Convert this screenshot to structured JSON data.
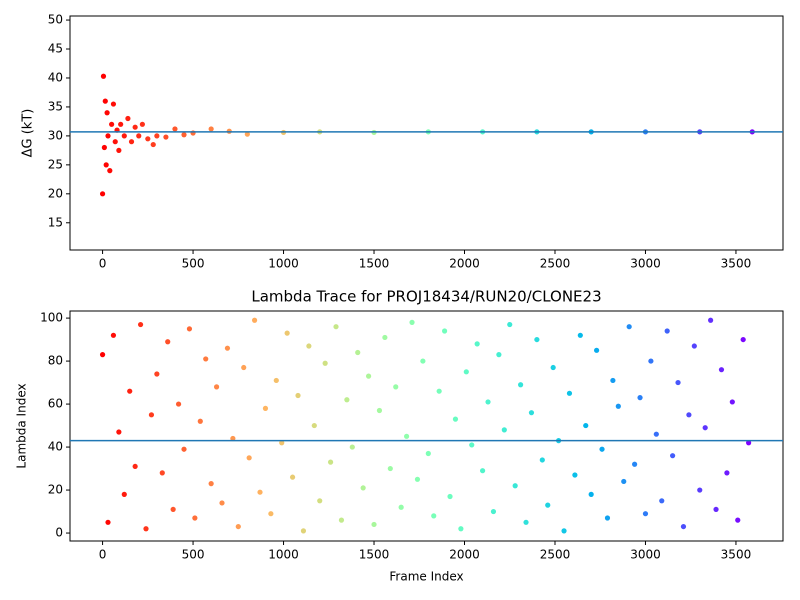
{
  "chart_data": [
    {
      "type": "scatter",
      "y_label": "ΔG (kT)",
      "colormap": "rainbow_r",
      "x": [
        0,
        5,
        10,
        15,
        20,
        25,
        30,
        40,
        50,
        60,
        70,
        80,
        90,
        100,
        120,
        140,
        160,
        180,
        200,
        220,
        250,
        280,
        300,
        350,
        400,
        450,
        500,
        600,
        700,
        800,
        1000,
        1200,
        1500,
        1800,
        2100,
        2400,
        2700,
        3000,
        3300,
        3590
      ],
      "y": [
        20,
        40.3,
        28,
        36,
        25,
        34,
        30,
        24,
        32,
        35.5,
        29,
        31,
        27.5,
        32,
        30,
        33,
        29,
        31.5,
        30,
        32,
        29.5,
        28.5,
        30,
        29.8,
        31.2,
        30.2,
        30.5,
        31.2,
        30.8,
        30.3,
        30.6,
        30.7,
        30.6,
        30.7,
        30.7,
        30.7,
        30.7,
        30.7,
        30.7,
        30.7
      ],
      "hline": 30.7,
      "hline_color": "#1f77b4",
      "xlim": [
        -180,
        3760
      ],
      "ylim": [
        10.3,
        50.7
      ],
      "xticks": [
        0,
        500,
        1000,
        1500,
        2000,
        2500,
        3000,
        3500
      ],
      "yticks": [
        15,
        20,
        25,
        30,
        35,
        40,
        45,
        50
      ]
    },
    {
      "type": "scatter",
      "title": "Lambda Trace for PROJ18434/RUN20/CLONE23",
      "x_label": "Frame Index",
      "y_label": "Lambda Index",
      "colormap": "rainbow_r",
      "x": [
        0,
        30,
        60,
        90,
        120,
        150,
        180,
        210,
        240,
        270,
        300,
        330,
        360,
        390,
        420,
        450,
        480,
        510,
        540,
        570,
        600,
        630,
        660,
        690,
        720,
        750,
        780,
        810,
        840,
        870,
        900,
        930,
        960,
        990,
        1020,
        1050,
        1080,
        1110,
        1140,
        1170,
        1200,
        1230,
        1260,
        1290,
        1320,
        1350,
        1380,
        1410,
        1440,
        1470,
        1500,
        1530,
        1560,
        1590,
        1620,
        1650,
        1680,
        1710,
        1740,
        1770,
        1800,
        1830,
        1860,
        1890,
        1920,
        1950,
        1980,
        2010,
        2040,
        2070,
        2100,
        2130,
        2160,
        2190,
        2220,
        2250,
        2280,
        2310,
        2340,
        2370,
        2400,
        2430,
        2460,
        2490,
        2520,
        2550,
        2580,
        2610,
        2640,
        2670,
        2700,
        2730,
        2760,
        2790,
        2820,
        2850,
        2880,
        2910,
        2940,
        2970,
        3000,
        3030,
        3060,
        3090,
        3120,
        3150,
        3180,
        3210,
        3240,
        3270,
        3300,
        3330,
        3360,
        3390,
        3420,
        3450,
        3480,
        3510,
        3540,
        3570
      ],
      "y": [
        83,
        5,
        92,
        47,
        18,
        66,
        31,
        97,
        2,
        55,
        74,
        28,
        89,
        11,
        60,
        39,
        95,
        7,
        52,
        81,
        23,
        68,
        14,
        86,
        44,
        3,
        77,
        35,
        99,
        19,
        58,
        9,
        71,
        42,
        93,
        26,
        64,
        1,
        87,
        50,
        15,
        79,
        33,
        96,
        6,
        62,
        40,
        84,
        21,
        73,
        4,
        57,
        91,
        30,
        68,
        12,
        45,
        98,
        25,
        80,
        37,
        8,
        66,
        94,
        17,
        53,
        2,
        75,
        41,
        88,
        29,
        61,
        10,
        83,
        48,
        97,
        22,
        69,
        5,
        56,
        90,
        34,
        13,
        77,
        43,
        1,
        65,
        27,
        92,
        50,
        18,
        85,
        39,
        7,
        71,
        59,
        24,
        96,
        32,
        63,
        9,
        80,
        46,
        15,
        94,
        36,
        70,
        3,
        55,
        87,
        20,
        49,
        99,
        11,
        76,
        28,
        61,
        6,
        90,
        42
      ],
      "hline": 43,
      "hline_color": "#1f77b4",
      "xlim": [
        -180,
        3760
      ],
      "ylim": [
        -3.7,
        103.3
      ],
      "xticks": [
        0,
        500,
        1000,
        1500,
        2000,
        2500,
        3000,
        3500
      ],
      "yticks": [
        0,
        20,
        40,
        60,
        80,
        100
      ]
    }
  ]
}
